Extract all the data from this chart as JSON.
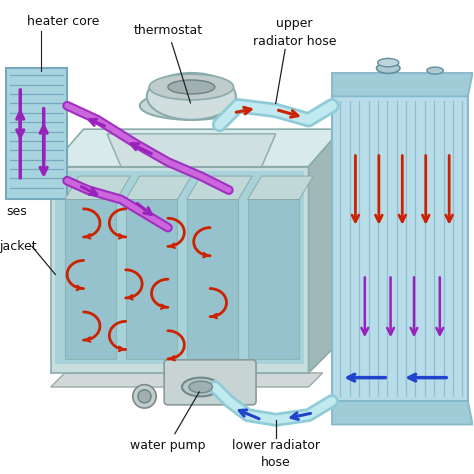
{
  "background_color": "#ffffff",
  "labels": {
    "heater_core": "heater core",
    "hoses": "ses",
    "thermostat": "thermostat",
    "upper_radiator_hose": "upper\nradiator hose",
    "jacket": "jacket",
    "water_pump": "water pump",
    "lower_radiator_hose": "lower radiator\nhose"
  },
  "colors": {
    "engine_body": "#c8dede",
    "engine_outline": "#8aabab",
    "engine_shadow": "#a0b8b8",
    "engine_top": "#d8eaea",
    "radiator_body": "#b8dce8",
    "radiator_fins": "#88b8cc",
    "radiator_tank": "#a0ccd8",
    "heater_core_body": "#a8d4e0",
    "heater_core_fins": "#78a8bc",
    "thermostat_body": "#c8dada",
    "thermostat_outline": "#8aabab",
    "hose_light": "#a8d8e0",
    "hose_mid": "#78b8c8",
    "hose_dark": "#50909e",
    "red_arrow": "#cc2200",
    "blue_arrow": "#2244cc",
    "purple_arrow": "#9922bb",
    "annotation_line": "#222222",
    "text_color": "#111111",
    "engine_cutaway": "#b0cfd8",
    "water_jacket": "#88c8d8",
    "cylinder_wall": "#90bcc8"
  },
  "figsize": [
    4.74,
    4.74
  ],
  "dpi": 100
}
